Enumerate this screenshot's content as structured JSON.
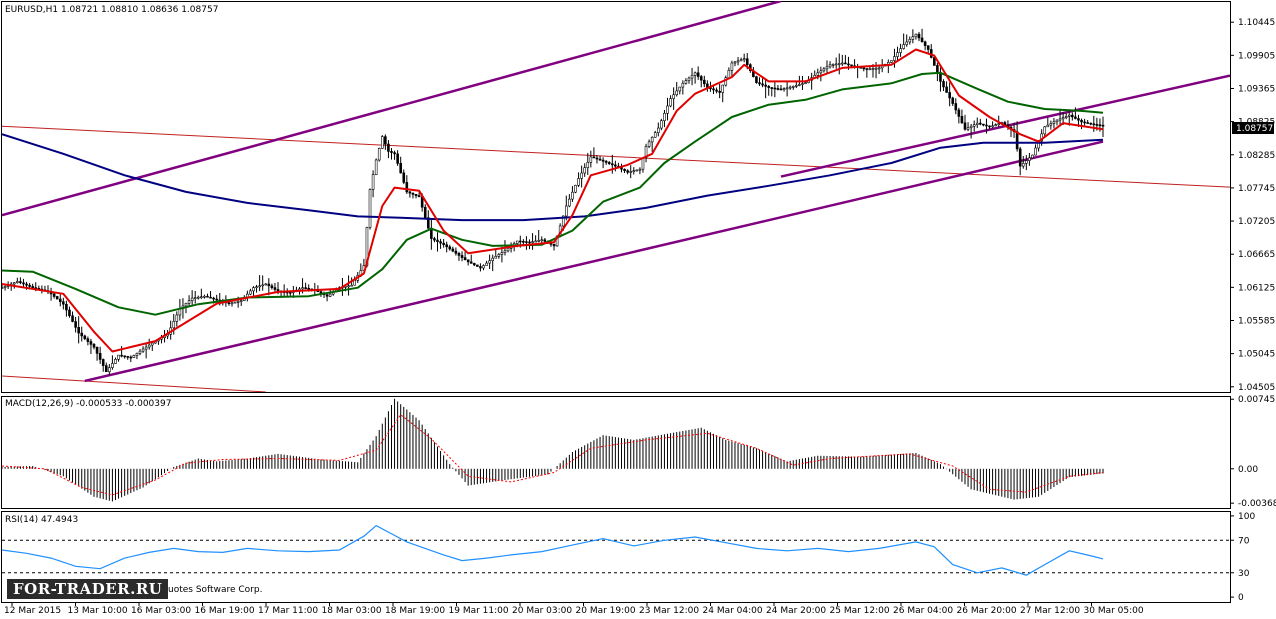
{
  "window": {
    "header": "EURUSD,H1  1.08721 1.08810 1.08636 1.08757",
    "macd_header": "MACD(12,26,9) -0.000533 -0.000397",
    "rsi_header": "RSI(14) 47.4943",
    "watermark": "FOR-TRADER.RU",
    "copyright_tail": "uotes Software Corp.",
    "current_price_tag": "1.08757"
  },
  "colors": {
    "candles": "#000000",
    "ma_fast": "#e00000",
    "ma_mid": "#006400",
    "ma_slow": "#000080",
    "channel": "#800080",
    "red_line": "#c02020",
    "macd_signal": "#ff0000",
    "rsi": "#1e90ff",
    "price_tag_bg": "#000000"
  },
  "chart_data": [
    {
      "type": "candlestick",
      "name": "price",
      "title": "EURUSD,H1",
      "ohlc_current": {
        "open": 1.08721,
        "high": 1.0881,
        "low": 1.08636,
        "close": 1.08757
      },
      "y_ticks": [
        "1.10445",
        "1.09905",
        "1.09365",
        "1.08825",
        "1.08285",
        "1.07745",
        "1.07205",
        "1.06665",
        "1.06125",
        "1.05585",
        "1.05045",
        "1.04505"
      ],
      "ylim": [
        1.0442,
        1.1079
      ],
      "x_ticks": [
        "12 Mar 2015",
        "13 Mar 10:00",
        "16 Mar 03:00",
        "16 Mar 19:00",
        "17 Mar 11:00",
        "18 Mar 03:00",
        "18 Mar 19:00",
        "19 Mar 11:00",
        "20 Mar 03:00",
        "20 Mar 19:00",
        "23 Mar 12:00",
        "24 Mar 04:00",
        "24 Mar 20:00",
        "25 Mar 12:00",
        "26 Mar 04:00",
        "26 Mar 20:00",
        "27 Mar 12:00",
        "30 Mar 05:00"
      ],
      "close_path": [
        [
          0,
          1.0612
        ],
        [
          5,
          1.0622
        ],
        [
          10,
          1.0612
        ],
        [
          15,
          1.0606
        ],
        [
          20,
          1.0585
        ],
        [
          25,
          1.0538
        ],
        [
          30,
          1.0515
        ],
        [
          34,
          1.0475
        ],
        [
          38,
          1.0502
        ],
        [
          42,
          1.0498
        ],
        [
          46,
          1.0512
        ],
        [
          50,
          1.0525
        ],
        [
          54,
          1.0536
        ],
        [
          58,
          1.0578
        ],
        [
          62,
          1.0595
        ],
        [
          66,
          1.0598
        ],
        [
          70,
          1.0592
        ],
        [
          74,
          1.0586
        ],
        [
          78,
          1.0591
        ],
        [
          82,
          1.0612
        ],
        [
          86,
          1.0618
        ],
        [
          90,
          1.0606
        ],
        [
          94,
          1.0604
        ],
        [
          98,
          1.0612
        ],
        [
          102,
          1.0608
        ],
        [
          106,
          1.0598
        ],
        [
          110,
          1.0612
        ],
        [
          114,
          1.0616
        ],
        [
          118,
          1.0648
        ],
        [
          120,
          1.0772
        ],
        [
          122,
          1.082
        ],
        [
          124,
          1.0858
        ],
        [
          126,
          1.0834
        ],
        [
          128,
          1.083
        ],
        [
          132,
          1.0768
        ],
        [
          136,
          1.076
        ],
        [
          140,
          1.0692
        ],
        [
          144,
          1.0682
        ],
        [
          148,
          1.0668
        ],
        [
          152,
          1.0654
        ],
        [
          156,
          1.0644
        ],
        [
          160,
          1.066
        ],
        [
          164,
          1.0672
        ],
        [
          168,
          1.0688
        ],
        [
          172,
          1.0686
        ],
        [
          176,
          1.069
        ],
        [
          180,
          1.068
        ],
        [
          184,
          1.0745
        ],
        [
          188,
          1.079
        ],
        [
          192,
          1.0825
        ],
        [
          196,
          1.0818
        ],
        [
          200,
          1.081
        ],
        [
          204,
          1.08
        ],
        [
          208,
          1.0805
        ],
        [
          210,
          1.0842
        ],
        [
          214,
          1.0872
        ],
        [
          218,
          1.092
        ],
        [
          222,
          1.0945
        ],
        [
          226,
          1.0962
        ],
        [
          230,
          1.0938
        ],
        [
          234,
          1.093
        ],
        [
          238,
          1.0978
        ],
        [
          242,
          1.0985
        ],
        [
          246,
          1.0946
        ],
        [
          250,
          1.0938
        ],
        [
          254,
          1.0935
        ],
        [
          258,
          1.094
        ],
        [
          262,
          1.0946
        ],
        [
          266,
          1.0962
        ],
        [
          270,
          1.0975
        ],
        [
          274,
          1.0978
        ],
        [
          278,
          1.0972
        ],
        [
          282,
          1.0968
        ],
        [
          286,
          1.097
        ],
        [
          290,
          1.0982
        ],
        [
          294,
          1.1008
        ],
        [
          298,
          1.1025
        ],
        [
          302,
          1.1
        ],
        [
          306,
          1.0948
        ],
        [
          310,
          1.0912
        ],
        [
          314,
          1.087
        ],
        [
          318,
          1.088
        ],
        [
          322,
          1.0874
        ],
        [
          326,
          1.0881
        ],
        [
          330,
          1.0866
        ],
        [
          332,
          1.081
        ],
        [
          336,
          1.0828
        ],
        [
          340,
          1.0874
        ],
        [
          344,
          1.0885
        ],
        [
          348,
          1.0893
        ],
        [
          352,
          1.0882
        ],
        [
          356,
          1.0878
        ],
        [
          359,
          1.0876
        ]
      ],
      "ma_fast_path": [
        [
          0,
          1.0618
        ],
        [
          20,
          1.0602
        ],
        [
          30,
          1.054
        ],
        [
          36,
          1.0508
        ],
        [
          50,
          1.0525
        ],
        [
          70,
          1.0586
        ],
        [
          90,
          1.0605
        ],
        [
          110,
          1.061
        ],
        [
          118,
          1.0635
        ],
        [
          124,
          1.0745
        ],
        [
          128,
          1.0775
        ],
        [
          136,
          1.077
        ],
        [
          144,
          1.0705
        ],
        [
          152,
          1.0668
        ],
        [
          168,
          1.068
        ],
        [
          180,
          1.0686
        ],
        [
          186,
          1.073
        ],
        [
          192,
          1.0795
        ],
        [
          204,
          1.0812
        ],
        [
          212,
          1.083
        ],
        [
          220,
          1.09
        ],
        [
          226,
          1.0928
        ],
        [
          238,
          1.0955
        ],
        [
          242,
          1.0975
        ],
        [
          250,
          1.0948
        ],
        [
          262,
          1.0948
        ],
        [
          274,
          1.097
        ],
        [
          290,
          1.0975
        ],
        [
          298,
          1.1
        ],
        [
          304,
          1.099
        ],
        [
          312,
          1.0925
        ],
        [
          322,
          1.089
        ],
        [
          332,
          1.0862
        ],
        [
          338,
          1.085
        ],
        [
          346,
          1.088
        ],
        [
          359,
          1.087
        ]
      ],
      "ma_mid_path": [
        [
          0,
          1.064
        ],
        [
          10,
          1.0638
        ],
        [
          24,
          1.061
        ],
        [
          38,
          1.058
        ],
        [
          50,
          1.0568
        ],
        [
          64,
          1.0585
        ],
        [
          80,
          1.0596
        ],
        [
          100,
          1.0598
        ],
        [
          116,
          1.0612
        ],
        [
          124,
          1.0642
        ],
        [
          132,
          1.069
        ],
        [
          140,
          1.0708
        ],
        [
          150,
          1.069
        ],
        [
          160,
          1.068
        ],
        [
          176,
          1.0682
        ],
        [
          186,
          1.0705
        ],
        [
          196,
          1.0752
        ],
        [
          208,
          1.0775
        ],
        [
          216,
          1.0815
        ],
        [
          226,
          1.085
        ],
        [
          238,
          1.089
        ],
        [
          250,
          1.091
        ],
        [
          262,
          1.0918
        ],
        [
          274,
          1.0935
        ],
        [
          290,
          1.0945
        ],
        [
          300,
          1.096
        ],
        [
          306,
          1.0962
        ],
        [
          318,
          1.0936
        ],
        [
          328,
          1.0915
        ],
        [
          340,
          1.0903
        ],
        [
          352,
          1.09
        ],
        [
          359,
          1.0897
        ]
      ],
      "ma_slow_path": [
        [
          0,
          1.0862
        ],
        [
          20,
          1.083
        ],
        [
          40,
          1.0795
        ],
        [
          60,
          1.0768
        ],
        [
          80,
          1.075
        ],
        [
          100,
          1.0738
        ],
        [
          116,
          1.0728
        ],
        [
          130,
          1.0726
        ],
        [
          150,
          1.0722
        ],
        [
          170,
          1.0722
        ],
        [
          190,
          1.0728
        ],
        [
          210,
          1.0742
        ],
        [
          230,
          1.0762
        ],
        [
          250,
          1.0778
        ],
        [
          270,
          1.0795
        ],
        [
          290,
          1.0815
        ],
        [
          306,
          1.084
        ],
        [
          320,
          1.0848
        ],
        [
          340,
          1.0848
        ],
        [
          359,
          1.0853
        ]
      ],
      "channel_lines": [
        {
          "x": [
            0,
            254
          ],
          "y": [
            1.073,
            1.1079
          ]
        },
        {
          "x": [
            27,
            359
          ],
          "y": [
            1.046,
            1.085
          ]
        },
        {
          "x": [
            254,
            359
          ],
          "y": [
            1.0793,
            1.0911
          ]
        }
      ],
      "red_lines": [
        {
          "x": [
            0,
            359
          ],
          "y": [
            1.0875,
            1.0786
          ]
        },
        {
          "x": [
            0,
            86
          ],
          "y": [
            1.0468,
            1.0442
          ]
        }
      ]
    },
    {
      "type": "histogram",
      "name": "macd",
      "title": "MACD(12,26,9)",
      "values": {
        "main": -0.000533,
        "signal": -0.000397
      },
      "y_ticks": [
        "0.007453",
        "0.00",
        "-0.003682"
      ],
      "ylim": [
        -0.0042,
        0.0078
      ],
      "histogram_path": [
        [
          0,
          0.0002
        ],
        [
          10,
          0.0003
        ],
        [
          20,
          -0.0008
        ],
        [
          30,
          -0.003
        ],
        [
          36,
          -0.0035
        ],
        [
          46,
          -0.002
        ],
        [
          56,
          0.0002
        ],
        [
          64,
          0.0011
        ],
        [
          70,
          0.0008
        ],
        [
          80,
          0.0011
        ],
        [
          90,
          0.0016
        ],
        [
          104,
          0.001
        ],
        [
          116,
          0.0007
        ],
        [
          122,
          0.0035
        ],
        [
          128,
          0.0075
        ],
        [
          136,
          0.0052
        ],
        [
          146,
          0.0005
        ],
        [
          152,
          -0.0018
        ],
        [
          164,
          -0.0012
        ],
        [
          178,
          -0.0006
        ],
        [
          186,
          0.0018
        ],
        [
          196,
          0.0036
        ],
        [
          206,
          0.0031
        ],
        [
          216,
          0.0037
        ],
        [
          228,
          0.0044
        ],
        [
          236,
          0.0031
        ],
        [
          246,
          0.0022
        ],
        [
          256,
          0.0008
        ],
        [
          266,
          0.0014
        ],
        [
          280,
          0.0013
        ],
        [
          298,
          0.0017
        ],
        [
          306,
          0.0005
        ],
        [
          316,
          -0.0022
        ],
        [
          330,
          -0.0033
        ],
        [
          338,
          -0.003
        ],
        [
          348,
          -0.0009
        ],
        [
          359,
          -0.0005
        ]
      ],
      "signal_path": [
        [
          0,
          0.0003
        ],
        [
          14,
          0.0
        ],
        [
          26,
          -0.002
        ],
        [
          36,
          -0.0028
        ],
        [
          50,
          -0.0012
        ],
        [
          60,
          0.0006
        ],
        [
          72,
          0.001
        ],
        [
          90,
          0.0011
        ],
        [
          110,
          0.0009
        ],
        [
          122,
          0.002
        ],
        [
          130,
          0.0058
        ],
        [
          140,
          0.0032
        ],
        [
          152,
          -0.0008
        ],
        [
          166,
          -0.0014
        ],
        [
          180,
          -0.0004
        ],
        [
          192,
          0.0022
        ],
        [
          210,
          0.0031
        ],
        [
          230,
          0.0038
        ],
        [
          246,
          0.0022
        ],
        [
          258,
          0.0004
        ],
        [
          270,
          0.0011
        ],
        [
          296,
          0.0016
        ],
        [
          310,
          0.0003
        ],
        [
          322,
          -0.0022
        ],
        [
          334,
          -0.0025
        ],
        [
          348,
          -0.0008
        ],
        [
          359,
          -0.0004
        ]
      ]
    },
    {
      "type": "line",
      "name": "rsi",
      "title": "RSI(14)",
      "value": 47.4943,
      "y_ticks": [
        "100",
        "70",
        "30",
        "0"
      ],
      "levels": [
        70,
        30
      ],
      "ylim": [
        0,
        100
      ],
      "rsi_path": [
        [
          0,
          58
        ],
        [
          8,
          54
        ],
        [
          16,
          48
        ],
        [
          24,
          38
        ],
        [
          32,
          35
        ],
        [
          40,
          48
        ],
        [
          48,
          55
        ],
        [
          56,
          60
        ],
        [
          64,
          56
        ],
        [
          72,
          55
        ],
        [
          80,
          60
        ],
        [
          90,
          57
        ],
        [
          100,
          56
        ],
        [
          110,
          58
        ],
        [
          118,
          75
        ],
        [
          122,
          88
        ],
        [
          126,
          80
        ],
        [
          132,
          68
        ],
        [
          138,
          60
        ],
        [
          144,
          52
        ],
        [
          150,
          45
        ],
        [
          158,
          48
        ],
        [
          166,
          52
        ],
        [
          176,
          56
        ],
        [
          186,
          64
        ],
        [
          196,
          72
        ],
        [
          206,
          63
        ],
        [
          216,
          70
        ],
        [
          226,
          74
        ],
        [
          236,
          67
        ],
        [
          246,
          60
        ],
        [
          256,
          57
        ],
        [
          266,
          60
        ],
        [
          276,
          56
        ],
        [
          286,
          60
        ],
        [
          298,
          68
        ],
        [
          304,
          62
        ],
        [
          310,
          40
        ],
        [
          318,
          30
        ],
        [
          326,
          36
        ],
        [
          334,
          27
        ],
        [
          340,
          40
        ],
        [
          348,
          57
        ],
        [
          356,
          50
        ],
        [
          359,
          47
        ]
      ]
    }
  ]
}
